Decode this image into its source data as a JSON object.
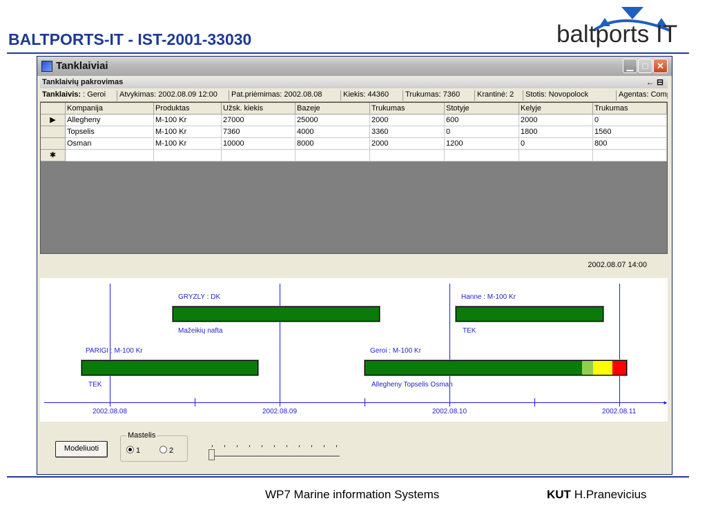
{
  "slide": {
    "title": "BALTPORTS-IT - IST-2001-33030",
    "logo_text": "baltports IT",
    "footer_left": "WP7 Marine information Systems",
    "footer_org": "KUT",
    "footer_author": "H.Pranevicius",
    "colors": {
      "title": "#1f3a93",
      "rule": "#1f3a93"
    }
  },
  "window": {
    "title": "Tanklaiviai",
    "panel_title": "Tanklaivių pakrovimas",
    "panel_arrows": "← ⊟",
    "info": {
      "tanklaivis_label": "Tanklaivis:",
      "tanklaivis_value": ": Geroi",
      "atvykimas_label": "Atvykimas:",
      "atvykimas_value": "2002.08.09 12:00",
      "priemimas_label": "Pat.priėmimas:",
      "priemimas_value": "2002.08.08",
      "kiekis_label": "Kiekis:",
      "kiekis_value": "44360",
      "trukumas_label": "Trukumas:",
      "trukumas_value": "7360",
      "krantine_label": "Krantinė:",
      "krantine_value": "2",
      "stotis_label": "Stotis:",
      "stotis_value": "Novopolock",
      "agentas_label": "Agentas:",
      "agentas_value": "Compa"
    },
    "grid": {
      "columns": [
        "Kompanija",
        "Produktas",
        "Užsk. kiekis",
        "Bazeje",
        "Trukumas",
        "Stotyje",
        "Kelyje",
        "Trukumas"
      ],
      "rows": [
        [
          "Allegheny",
          "M-100 Kr",
          "27000",
          "25000",
          "2000",
          "600",
          "2000",
          "0"
        ],
        [
          "Topselis",
          "M-100 Kr",
          "7360",
          "4000",
          "3360",
          "0",
          "1800",
          "1560"
        ],
        [
          "Osman",
          "M-100 Kr",
          "10000",
          "8000",
          "2000",
          "1200",
          "0",
          "800"
        ]
      ],
      "current_row_marker": "▶",
      "new_row_marker": "✱"
    },
    "timestamp": "2002.08.07  14:00",
    "timeline": {
      "dates": [
        "2002.08.08",
        "2002.08.09",
        "2002.08.10",
        "2002.08.11"
      ],
      "bars": [
        {
          "top_label": "GRYZLY : DK",
          "bottom_label": "Mažeikių nafta"
        },
        {
          "top_label": "Hanne : M-100 Kr",
          "bottom_label": "TEK"
        },
        {
          "top_label": "PARIGI : M-100 Kr",
          "bottom_label": "TEK"
        },
        {
          "top_label": "Geroi : M-100 Kr",
          "bottom_label": "Allegheny Topselis Osman"
        }
      ],
      "colors": {
        "bar": "#0b7a0b",
        "line": "#1a1ad8",
        "label": "#2222cc",
        "seg_light": "#8fd14f",
        "seg_yellow": "#ffff00",
        "seg_red": "#ff0000"
      }
    },
    "controls": {
      "model_button": "Modeliuoti",
      "mastelis_label": "Mastelis",
      "radio_1": "1",
      "radio_2": "2",
      "radio_selected": "1"
    }
  }
}
